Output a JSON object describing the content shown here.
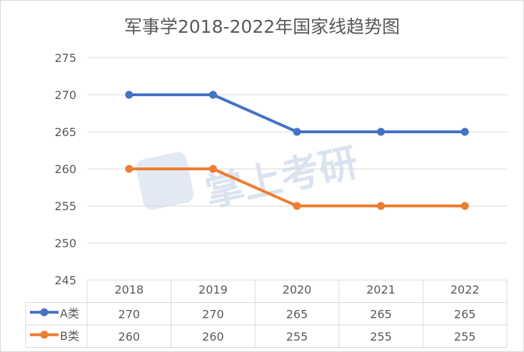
{
  "chart_data": {
    "type": "line",
    "title": "军事学2018-2022年国家线趋势图",
    "categories": [
      "2018",
      "2019",
      "2020",
      "2021",
      "2022"
    ],
    "series": [
      {
        "name": "A类",
        "values": [
          270,
          270,
          265,
          265,
          265
        ],
        "color": "#4472c4"
      },
      {
        "name": "B类",
        "values": [
          260,
          260,
          255,
          255,
          255
        ],
        "color": "#ed7d31"
      }
    ],
    "ylim": [
      245,
      275
    ],
    "yticks": [
      245,
      250,
      255,
      260,
      265,
      270,
      275
    ],
    "grid": true,
    "legend": "data-table",
    "watermark": "掌上考研"
  }
}
